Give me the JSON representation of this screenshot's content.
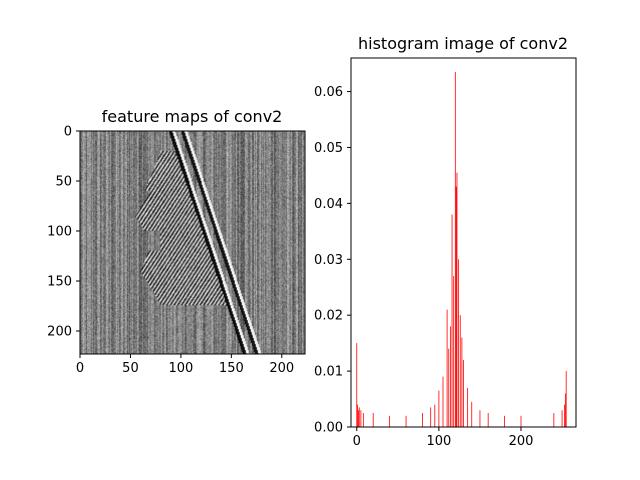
{
  "chart_data": [
    {
      "type": "heatmap",
      "title": "feature maps of conv2",
      "xlabel": "",
      "ylabel": "",
      "colormap": "gray",
      "xlim": [
        0,
        223
      ],
      "ylim": [
        223,
        0
      ],
      "x_ticks": [
        "0",
        "50",
        "100",
        "150",
        "200"
      ],
      "y_ticks": [
        "0",
        "50",
        "100",
        "150",
        "200"
      ],
      "x_tick_values": [
        0,
        50,
        100,
        150,
        200
      ],
      "y_tick_values": [
        0,
        50,
        100,
        150,
        200
      ],
      "description_values": {
        "background_level": 0.5,
        "edge_stripes": [
          {
            "y": [
              0,
              223
            ],
            "x": [
              90,
              165
            ],
            "value": 0.0
          },
          {
            "y": [
              0,
              223
            ],
            "x": [
              102,
              175
            ],
            "value": 1.0
          }
        ],
        "textured_region": {
          "x_range": [
            55,
            165
          ],
          "y_range": [
            10,
            175
          ]
        }
      }
    },
    {
      "type": "bar",
      "title": "histogram image of conv2",
      "xlabel": "",
      "ylabel": "",
      "color": "#ff0000",
      "xlim": [
        -7,
        267
      ],
      "ylim": [
        0,
        0.066
      ],
      "x_ticks": [
        "0",
        "100",
        "200"
      ],
      "x_tick_values": [
        0,
        100,
        200
      ],
      "y_ticks": [
        "0.00",
        "0.01",
        "0.02",
        "0.03",
        "0.04",
        "0.05",
        "0.06"
      ],
      "y_tick_values": [
        0,
        0.01,
        0.02,
        0.03,
        0.04,
        0.05,
        0.06
      ],
      "x": [
        0,
        1,
        2,
        3,
        5,
        8,
        20,
        40,
        60,
        80,
        90,
        95,
        100,
        105,
        110,
        112,
        114,
        116,
        118,
        120,
        121,
        122,
        124,
        126,
        128,
        130,
        135,
        140,
        150,
        160,
        180,
        200,
        240,
        250,
        253,
        254,
        255
      ],
      "values": [
        0.015,
        0.004,
        0.003,
        0.0035,
        0.003,
        0.0025,
        0.0025,
        0.002,
        0.002,
        0.0025,
        0.0035,
        0.004,
        0.0065,
        0.009,
        0.021,
        0.014,
        0.018,
        0.038,
        0.027,
        0.0635,
        0.043,
        0.0455,
        0.03,
        0.02,
        0.016,
        0.012,
        0.007,
        0.0045,
        0.003,
        0.0025,
        0.002,
        0.002,
        0.0025,
        0.003,
        0.004,
        0.006,
        0.01
      ]
    }
  ]
}
